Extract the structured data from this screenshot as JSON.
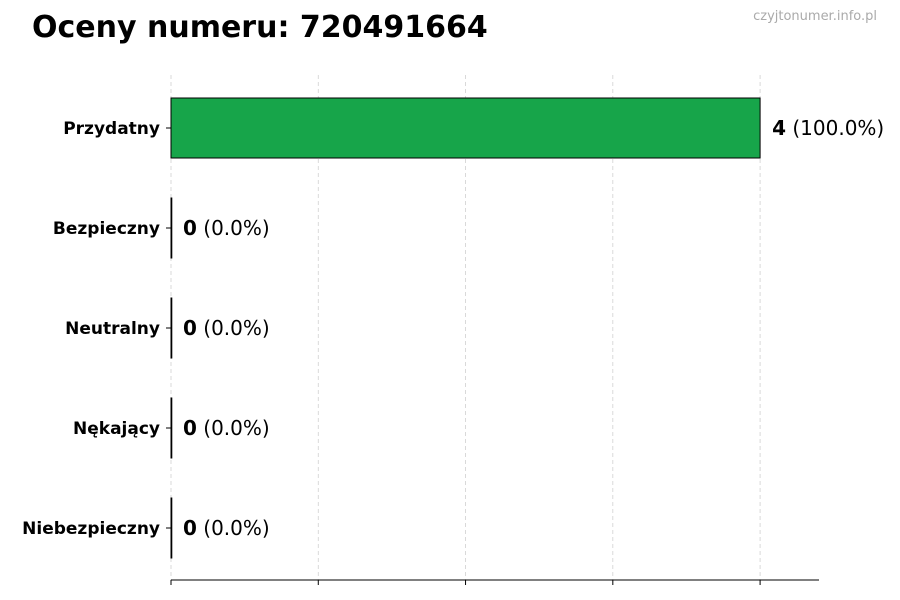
{
  "chart_data": {
    "type": "bar",
    "orientation": "horizontal",
    "title": "Oceny numeru: 720491664",
    "watermark": "czyjtonumer.info.pl",
    "categories": [
      "Przydatny",
      "Bezpieczny",
      "Neutralny",
      "Nękający",
      "Niebezpieczny"
    ],
    "values": [
      4,
      0,
      0,
      0,
      0
    ],
    "percent_labels": [
      "(100.0%)",
      "(0.0%)",
      "(0.0%)",
      "(0.0%)",
      "(0.0%)"
    ],
    "xlabel": "",
    "ylabel": "",
    "xlim": [
      0,
      4.4
    ],
    "x_ticks": [
      0,
      1,
      2,
      3,
      4
    ],
    "x_tick_labels_shown": false,
    "grid": "vertical dashed",
    "colors": {
      "bar": "#17a54a",
      "bar_edge": "#000000",
      "grid": "#d0d0d0"
    }
  }
}
